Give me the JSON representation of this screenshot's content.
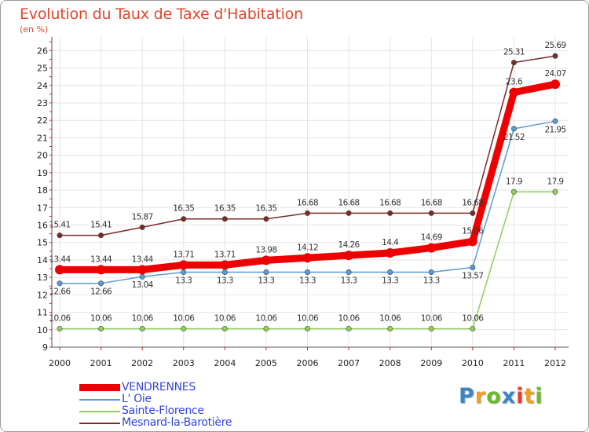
{
  "title": "Evolution du Taux de Taxe d'Habitation",
  "subtitle": "(en %)",
  "logo": {
    "letters": [
      "P",
      "r",
      "o",
      "x",
      "i",
      "t",
      "i"
    ],
    "colors": [
      "#3a86c8",
      "#f0a020",
      "#6bbb2a",
      "#3a86c8",
      "#e2402a",
      "#f0a020",
      "#6bbb2a"
    ]
  },
  "chart_data": {
    "type": "line",
    "x": [
      "2000",
      "2001",
      "2002",
      "2003",
      "2004",
      "2005",
      "2006",
      "2007",
      "2008",
      "2009",
      "2010",
      "2011",
      "2012"
    ],
    "yticks": [
      9,
      10,
      11,
      12,
      13,
      14,
      15,
      16,
      17,
      18,
      19,
      20,
      21,
      22,
      23,
      24,
      25,
      26
    ],
    "ylim": [
      9,
      26.6
    ],
    "grid": true,
    "legend_position": "bottom-left",
    "series": [
      {
        "name": "VENDRENNES",
        "color": "#ee0000",
        "values": [
          13.44,
          13.44,
          13.44,
          13.71,
          13.71,
          13.98,
          14.12,
          14.26,
          14.4,
          14.69,
          15.06,
          23.6,
          24.07
        ],
        "labels": [
          "13.44",
          "13.44",
          "13.44",
          "13.71",
          "13.71",
          "13.98",
          "14.12",
          "14.26",
          "14.4",
          "14.69",
          "15.06",
          "23.6",
          "24.07"
        ]
      },
      {
        "name": "L' Oie",
        "color": "#5b9bd5",
        "values": [
          12.66,
          12.66,
          13.04,
          13.3,
          13.3,
          13.3,
          13.3,
          13.3,
          13.3,
          13.3,
          13.57,
          21.52,
          21.95
        ],
        "labels": [
          "12.66",
          "12.66",
          "13.04",
          "13.3",
          "13.3",
          "13.3",
          "13.3",
          "13.3",
          "13.3",
          "13.3",
          "13.57",
          "21.52",
          "21.95"
        ]
      },
      {
        "name": "Sainte-Florence",
        "color": "#8ed05a",
        "values": [
          10.06,
          10.06,
          10.06,
          10.06,
          10.06,
          10.06,
          10.06,
          10.06,
          10.06,
          10.06,
          10.06,
          17.9,
          17.9
        ],
        "labels": [
          "10.06",
          "10.06",
          "10.06",
          "10.06",
          "10.06",
          "10.06",
          "10.06",
          "10.06",
          "10.06",
          "10.06",
          "10.06",
          "17.9",
          "17.9"
        ]
      },
      {
        "name": "Mesnard-la-Barotière",
        "color": "#7a2a2a",
        "values": [
          15.41,
          15.41,
          15.87,
          16.35,
          16.35,
          16.35,
          16.68,
          16.68,
          16.68,
          16.68,
          16.68,
          25.31,
          25.69
        ],
        "labels": [
          "15.41",
          "15.41",
          "15.87",
          "16.35",
          "16.35",
          "16.35",
          "16.68",
          "16.68",
          "16.68",
          "16.68",
          "16.68",
          "25.31",
          "25.69"
        ]
      }
    ]
  }
}
